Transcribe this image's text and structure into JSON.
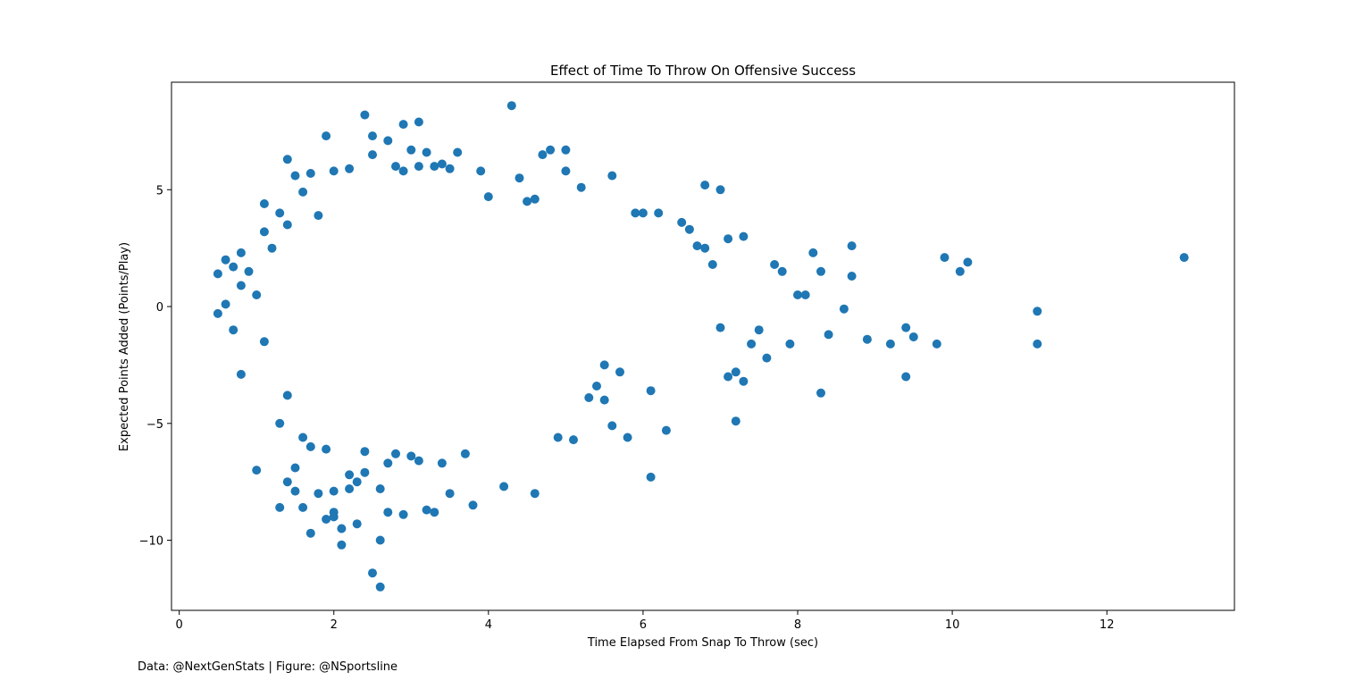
{
  "chart_data": {
    "type": "scatter",
    "title": "Effect of Time To Throw On Offensive Success",
    "xlabel": "Time Elapsed From Snap To Throw (sec)",
    "ylabel": "Expected Points Added (Points/Play)",
    "xlim": [
      -0.1,
      13.65
    ],
    "ylim": [
      -13,
      9.6
    ],
    "xticks": [
      0,
      2,
      4,
      6,
      8,
      10,
      12
    ],
    "yticks": [
      -10,
      -5,
      0,
      5
    ],
    "yticklabels": [
      "−10",
      "−5",
      "0",
      "5"
    ],
    "grid": false,
    "legend": "none",
    "marker_color": "#1f77b4",
    "series": [
      {
        "values_note_omitted": true,
        "x": [
          0.5,
          0.5,
          0.6,
          0.6,
          0.7,
          0.7,
          0.8,
          0.8,
          0.8,
          0.9,
          1.0,
          1.0,
          1.1,
          1.1,
          1.1,
          1.2,
          1.3,
          1.3,
          1.3,
          1.4,
          1.4,
          1.4,
          1.4,
          1.5,
          1.5,
          1.5,
          1.6,
          1.6,
          1.6,
          1.7,
          1.7,
          1.7,
          1.8,
          1.8,
          1.9,
          1.9,
          1.9,
          2.0,
          2.0,
          2.0,
          2.0,
          2.1,
          2.1,
          2.2,
          2.2,
          2.2,
          2.3,
          2.3,
          2.4,
          2.4,
          2.4,
          2.5,
          2.5,
          2.5,
          2.6,
          2.6,
          2.6,
          2.7,
          2.7,
          2.7,
          2.8,
          2.8,
          2.9,
          2.9,
          2.9,
          3.0,
          3.0,
          3.1,
          3.1,
          3.1,
          3.2,
          3.2,
          3.3,
          3.3,
          3.4,
          3.4,
          3.5,
          3.5,
          3.6,
          3.7,
          3.8,
          3.9,
          4.0,
          4.2,
          4.3,
          4.4,
          4.5,
          4.6,
          4.6,
          4.7,
          4.8,
          4.9,
          5.0,
          5.0,
          5.1,
          5.2,
          5.3,
          5.4,
          5.5,
          5.5,
          5.6,
          5.6,
          5.7,
          5.8,
          5.9,
          6.0,
          6.1,
          6.1,
          6.2,
          6.3,
          6.5,
          6.6,
          6.7,
          6.8,
          6.8,
          6.9,
          7.0,
          7.0,
          7.1,
          7.1,
          7.2,
          7.2,
          7.3,
          7.3,
          7.4,
          7.5,
          7.6,
          7.7,
          7.8,
          7.9,
          8.0,
          8.1,
          8.2,
          8.3,
          8.3,
          8.4,
          8.6,
          8.7,
          8.7,
          8.9,
          9.2,
          9.4,
          9.4,
          9.5,
          9.8,
          9.9,
          10.1,
          10.2,
          11.1,
          11.1,
          13.0
        ],
        "y": [
          1.4,
          -0.3,
          2.0,
          0.1,
          1.7,
          -1.0,
          2.3,
          0.9,
          -2.9,
          1.5,
          -7.0,
          0.5,
          4.4,
          -1.5,
          3.2,
          2.5,
          -8.6,
          4.0,
          -5.0,
          6.3,
          -7.5,
          -3.8,
          3.5,
          -7.9,
          -6.9,
          5.6,
          -8.6,
          -5.6,
          4.9,
          -9.7,
          5.7,
          -6.0,
          -8.0,
          3.9,
          -9.1,
          7.3,
          -6.1,
          -8.8,
          -9.0,
          5.8,
          -7.9,
          -10.2,
          -9.5,
          -7.8,
          -7.2,
          5.9,
          -9.3,
          -7.5,
          8.2,
          -7.1,
          -6.2,
          -11.4,
          7.3,
          6.5,
          -12.0,
          -10.0,
          -7.8,
          7.1,
          -8.8,
          -6.7,
          6.0,
          -6.3,
          -8.9,
          7.8,
          5.8,
          6.7,
          -6.4,
          7.9,
          -6.6,
          6.0,
          -8.7,
          6.6,
          -8.8,
          6.0,
          -6.7,
          6.1,
          -8.0,
          5.9,
          6.6,
          -6.3,
          -8.5,
          5.8,
          4.7,
          -7.7,
          8.6,
          5.5,
          4.5,
          -8.0,
          4.6,
          6.5,
          6.7,
          -5.6,
          5.8,
          6.7,
          -5.7,
          5.1,
          -3.9,
          -3.4,
          -2.5,
          -4.0,
          5.6,
          -5.1,
          -2.8,
          -5.6,
          4.0,
          4.0,
          -7.3,
          -3.6,
          4.0,
          -5.3,
          3.6,
          3.3,
          2.6,
          5.2,
          2.5,
          1.8,
          5.0,
          -0.9,
          -3.0,
          2.9,
          -2.8,
          -4.9,
          -3.2,
          3.0,
          -1.6,
          -1.0,
          -2.2,
          1.8,
          1.5,
          -1.6,
          0.5,
          0.5,
          2.3,
          1.5,
          -3.7,
          -1.2,
          -0.1,
          2.6,
          1.3,
          -1.4,
          -1.6,
          -3.0,
          -0.9,
          -1.3,
          -1.6,
          2.1,
          1.5,
          1.9,
          -0.2,
          -1.6,
          2.1
        ]
      }
    ]
  },
  "footer": {
    "credit": "Data: @NextGenStats | Figure: @NSportsline"
  }
}
